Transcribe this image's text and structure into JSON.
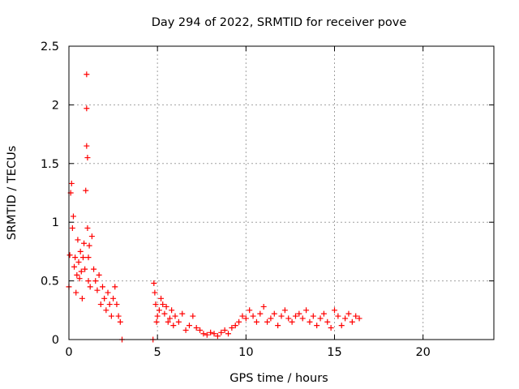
{
  "chart_data": {
    "type": "scatter",
    "title": "Day 294 of 2022, SRMTID for receiver pove",
    "xlabel": "GPS time / hours",
    "ylabel": "SRMTID / TECUs",
    "xlim": [
      0,
      24
    ],
    "ylim": [
      0,
      2.5
    ],
    "xticks": [
      0,
      5,
      10,
      15,
      20
    ],
    "yticks": [
      0,
      0.5,
      1,
      1.5,
      2,
      2.5
    ],
    "xtick_labels": [
      "0",
      "5",
      "10",
      "15",
      "20"
    ],
    "ytick_labels": [
      "0",
      "0.5",
      "1",
      "1.5",
      "2",
      "2.5"
    ],
    "grid": true,
    "marker": "+",
    "marker_color": "#ff0000",
    "series": [
      {
        "x": [
          0.0,
          0.05,
          0.1,
          0.15,
          0.2,
          0.25,
          0.3,
          0.35,
          0.4,
          0.45,
          0.5,
          0.55,
          0.6,
          0.65,
          0.7,
          0.75,
          0.8,
          0.85,
          0.9,
          0.95,
          1.0,
          1.0,
          1.0,
          1.05,
          1.05,
          1.1,
          1.1,
          1.15,
          1.2,
          1.3,
          1.4,
          1.5,
          1.6,
          1.7,
          1.8,
          1.9,
          2.0,
          2.1,
          2.2,
          2.3,
          2.4,
          2.5,
          2.6,
          2.7,
          2.8,
          2.9,
          3.0,
          4.75,
          4.8,
          4.85,
          4.9,
          4.95,
          5.0,
          5.1,
          5.2,
          5.3,
          5.4,
          5.5,
          5.6,
          5.7,
          5.8,
          5.9,
          6.0,
          6.2,
          6.4,
          6.6,
          6.8,
          7.0,
          7.2,
          7.4,
          7.6,
          7.8,
          8.0,
          8.2,
          8.4,
          8.6,
          8.8,
          9.0,
          9.2,
          9.4,
          9.6,
          9.8,
          10.0,
          10.2,
          10.4,
          10.6,
          10.8,
          11.0,
          11.2,
          11.4,
          11.6,
          11.8,
          12.0,
          12.2,
          12.4,
          12.6,
          12.8,
          13.0,
          13.2,
          13.4,
          13.6,
          13.8,
          14.0,
          14.2,
          14.4,
          14.6,
          14.8,
          15.0,
          15.2,
          15.4,
          15.6,
          15.8,
          16.0,
          16.2,
          16.4
        ],
        "y": [
          0.45,
          0.72,
          1.25,
          1.33,
          0.95,
          1.05,
          0.62,
          0.7,
          0.4,
          0.55,
          0.85,
          0.66,
          0.52,
          0.75,
          0.58,
          0.35,
          0.7,
          0.82,
          0.6,
          1.27,
          2.26,
          1.97,
          1.65,
          1.55,
          0.95,
          0.5,
          0.7,
          0.8,
          0.45,
          0.88,
          0.6,
          0.5,
          0.42,
          0.55,
          0.3,
          0.45,
          0.35,
          0.25,
          0.4,
          0.3,
          0.2,
          0.35,
          0.45,
          0.3,
          0.2,
          0.15,
          0.0,
          0.0,
          0.48,
          0.4,
          0.3,
          0.15,
          0.2,
          0.25,
          0.35,
          0.3,
          0.22,
          0.28,
          0.15,
          0.18,
          0.25,
          0.12,
          0.2,
          0.15,
          0.22,
          0.08,
          0.12,
          0.2,
          0.1,
          0.08,
          0.05,
          0.04,
          0.06,
          0.05,
          0.03,
          0.06,
          0.08,
          0.05,
          0.1,
          0.12,
          0.15,
          0.2,
          0.18,
          0.25,
          0.2,
          0.15,
          0.22,
          0.28,
          0.15,
          0.18,
          0.22,
          0.12,
          0.2,
          0.25,
          0.18,
          0.15,
          0.2,
          0.22,
          0.18,
          0.25,
          0.15,
          0.2,
          0.12,
          0.18,
          0.22,
          0.15,
          0.1,
          0.25,
          0.2,
          0.12,
          0.18,
          0.22,
          0.15,
          0.2,
          0.18
        ]
      }
    ]
  }
}
